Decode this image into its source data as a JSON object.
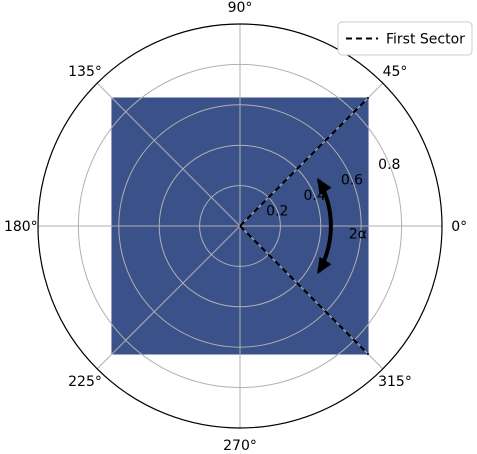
{
  "chart_data": {
    "type": "polar",
    "title": "",
    "angle_ticks": [
      "0°",
      "45°",
      "90°",
      "135°",
      "180°",
      "225°",
      "270°",
      "315°"
    ],
    "angle_tick_values_deg": [
      0,
      45,
      90,
      135,
      180,
      225,
      270,
      315
    ],
    "radial_ticks": [
      "0.2",
      "0.4",
      "0.6",
      "0.8"
    ],
    "radial_tick_values": [
      0.2,
      0.4,
      0.6,
      0.8
    ],
    "radial_label_angle_deg": 22.5,
    "rlim": [
      0,
      1.0
    ],
    "grid": true,
    "square_fill": {
      "color": "#3b5189",
      "corner_radius": 0.9,
      "description_shape": "square inscribed with corners at 45, 135, 225, 315 degrees"
    },
    "sector": {
      "name": "First Sector",
      "line_style": "dashed",
      "color": "#000000",
      "angles_deg": [
        45,
        -45
      ],
      "r_max": 0.9
    },
    "arc_annotation": {
      "label": "2α",
      "radius": 0.45,
      "angle_start_deg": 30,
      "angle_end_deg": -30,
      "double_headed": true
    },
    "legend": {
      "placement": "top-right",
      "entries": [
        {
          "label": "First Sector",
          "style": "dashed",
          "color": "#000000"
        }
      ]
    }
  }
}
